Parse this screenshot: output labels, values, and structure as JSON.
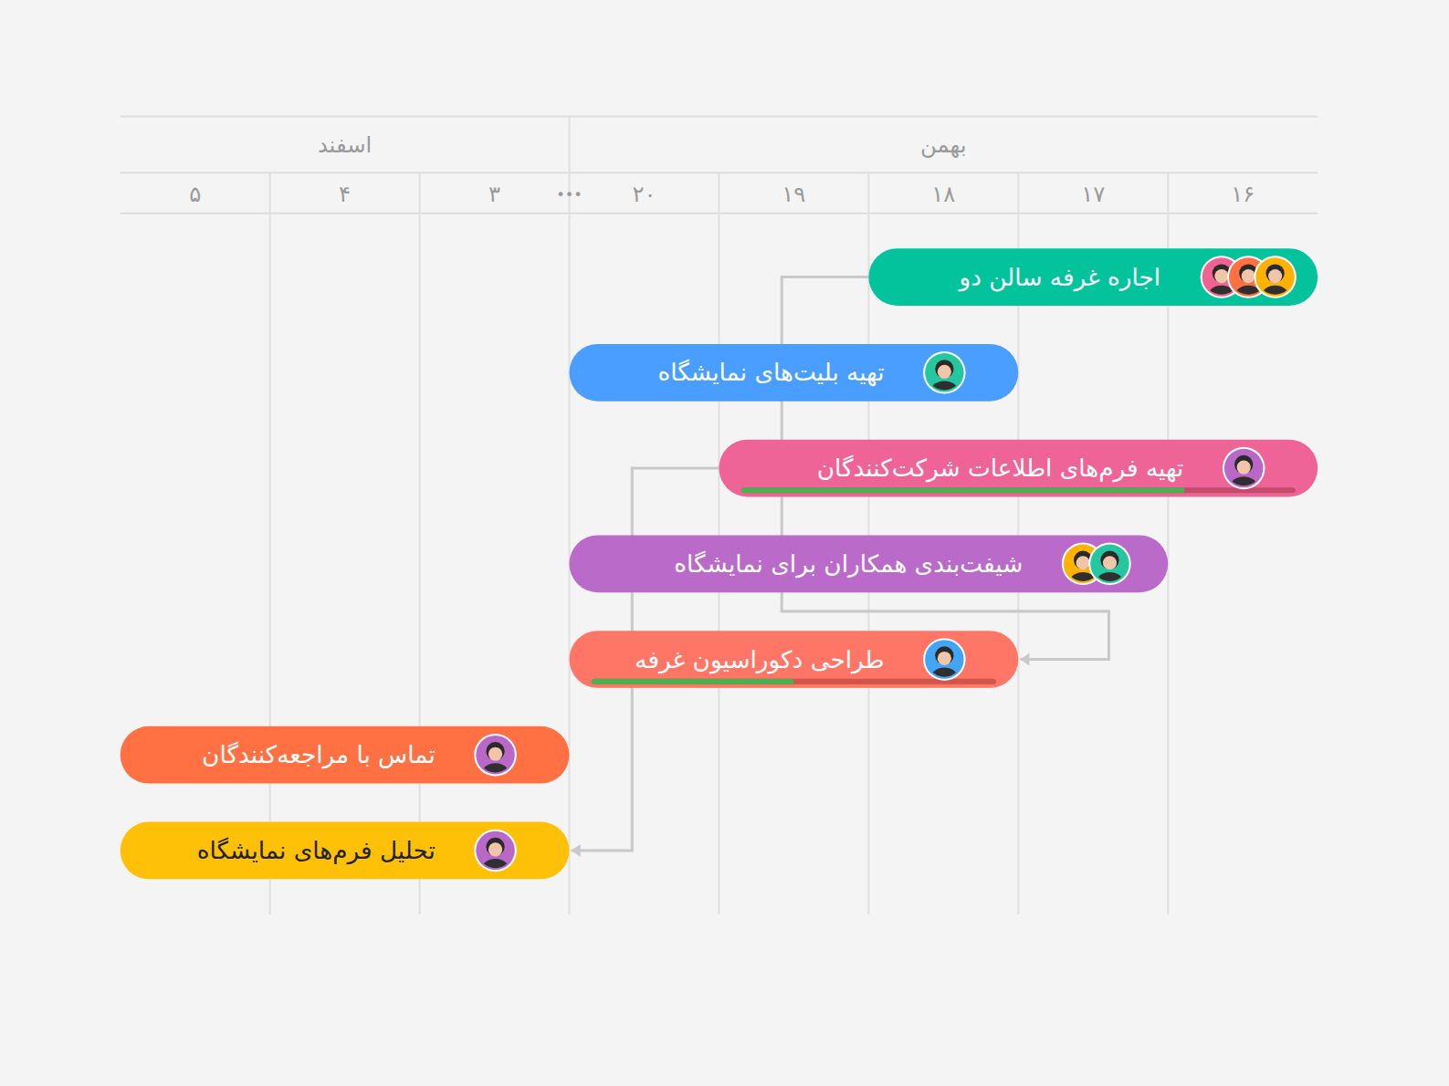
{
  "chart_data": {
    "type": "gantt",
    "months": [
      {
        "label": "بهمن",
        "start": 0,
        "end": 4
      },
      {
        "label": "اسفند",
        "start": 5,
        "end": 7
      }
    ],
    "days": [
      "۱۶",
      "۱۷",
      "۱۸",
      "۱۹",
      "۲۰",
      "۳",
      "۴",
      "۵"
    ],
    "gap_label": "•••",
    "grid": true,
    "tasks": [
      {
        "label": "اجاره غرفه سالن دو",
        "start": 0,
        "end": 2,
        "color": "#03c39c",
        "text_color": "#ffffff",
        "avatars": [
          "#f06292",
          "#ff7043",
          "#ffb300"
        ]
      },
      {
        "label": "تهیه بلیت‌های نمایشگاه",
        "start": 2,
        "end": 4,
        "color": "#4a9eff",
        "text_color": "#ffffff",
        "avatars": [
          "#26c6a0"
        ]
      },
      {
        "label": "تهیه فرم‌های اطلاعات شرکت‌کنندگان",
        "start": 0,
        "end": 3,
        "color": "#ef6497",
        "text_color": "#ffffff",
        "avatars": [
          "#ba68c8"
        ],
        "progress": 80
      },
      {
        "label": "شیفت‌بندی همکاران برای نمایشگاه",
        "start": 1,
        "end": 4,
        "color": "#ba6ac9",
        "text_color": "#ffffff",
        "avatars": [
          "#ffb300",
          "#26c6a0"
        ]
      },
      {
        "label": "طراحی دکوراسیون غرفه",
        "start": 2,
        "end": 4,
        "color": "#ff7566",
        "text_color": "#ffffff",
        "avatars": [
          "#42a5f5"
        ],
        "progress": 50
      },
      {
        "label": "تماس با مراجعه‌کنندگان",
        "start": 5,
        "end": 7,
        "color": "#ff7043",
        "text_color": "#ffffff",
        "avatars": [
          "#ba68c8"
        ]
      },
      {
        "label": "تحلیل فرم‌های نمایشگاه",
        "start": 5,
        "end": 7,
        "color": "#ffc107",
        "text_color": "#222222",
        "avatars": [
          "#ba68c8"
        ]
      }
    ],
    "dependencies": [
      {
        "from": 0,
        "to": 4
      },
      {
        "from": 2,
        "to": 6
      }
    ]
  }
}
